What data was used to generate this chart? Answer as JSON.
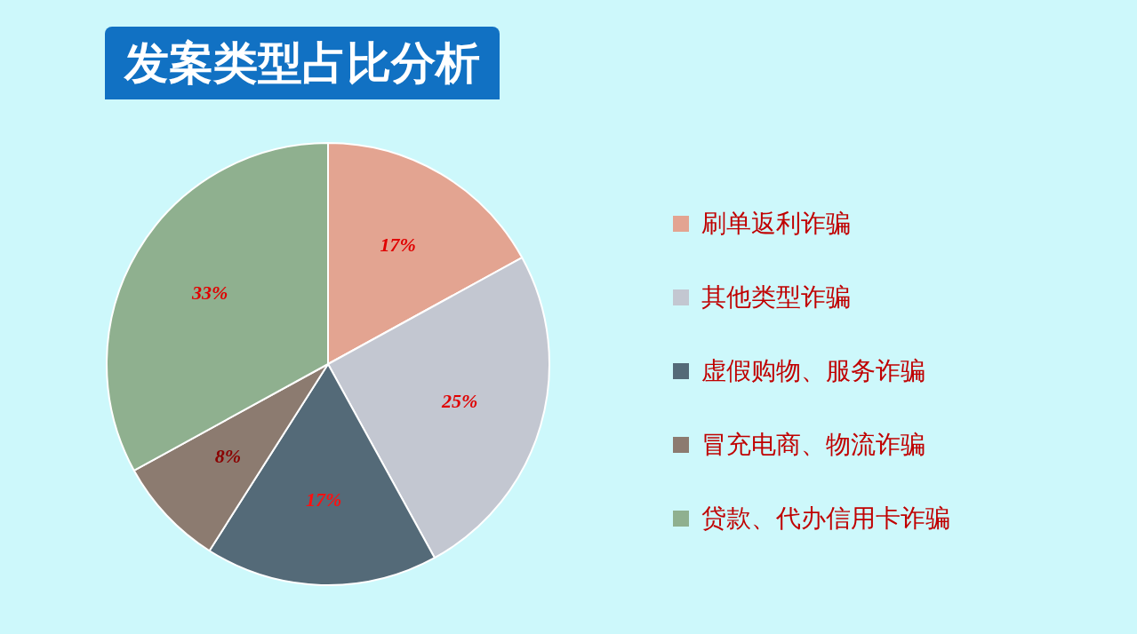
{
  "chart_data": {
    "type": "pie",
    "title": "发案类型占比分析",
    "categories": [
      "刷单返利诈骗",
      "其他类型诈骗",
      "虚假购物、服务诈骗",
      "冒充电商、物流诈骗",
      "贷款、代办信用卡诈骗"
    ],
    "values": [
      17,
      25,
      17,
      8,
      33
    ],
    "colors": [
      "#e3a491",
      "#c3c7d1",
      "#546a78",
      "#8c7b70",
      "#8fb08f"
    ],
    "value_labels": [
      "17%",
      "25%",
      "17%",
      "8%",
      "33%"
    ],
    "legend": "right"
  }
}
